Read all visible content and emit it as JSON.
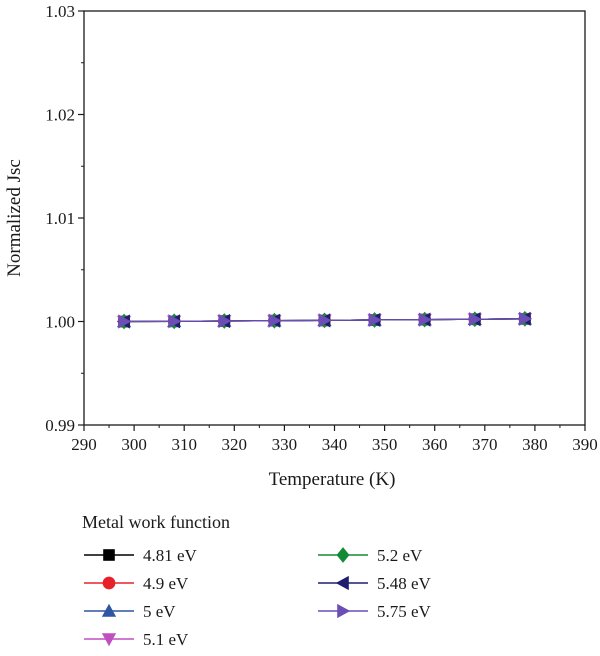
{
  "chart_data": {
    "type": "line",
    "xlabel": "Temperature (K)",
    "ylabel": "Normalized Jsc",
    "xlim": [
      290,
      390
    ],
    "ylim": [
      0.99,
      1.03
    ],
    "xticks": [
      290,
      300,
      310,
      320,
      330,
      340,
      350,
      360,
      370,
      380,
      390
    ],
    "yticks": [
      0.99,
      1.0,
      1.01,
      1.02,
      1.03
    ],
    "ytick_labels": [
      "0.99",
      "1.00",
      "1.01",
      "1.02",
      "1.03"
    ],
    "grid": false,
    "legend": {
      "title": "Metal work function",
      "placement": "bottom"
    },
    "x": [
      298,
      308,
      318,
      328,
      338,
      348,
      358,
      368,
      378
    ],
    "series": [
      {
        "name": "4.81 eV",
        "marker": "square",
        "color": "#000000",
        "values": [
          1.0,
          1.00002,
          1.00005,
          1.00008,
          1.00011,
          1.00015,
          1.00018,
          1.00022,
          1.00026
        ]
      },
      {
        "name": "4.9 eV",
        "marker": "circle",
        "color": "#e8202a",
        "values": [
          1.0,
          1.00002,
          1.00005,
          1.00008,
          1.00011,
          1.00015,
          1.00018,
          1.00022,
          1.00026
        ]
      },
      {
        "name": "5 eV",
        "marker": "triangle-up",
        "color": "#2f55a4",
        "values": [
          1.0,
          1.00002,
          1.00005,
          1.00008,
          1.00011,
          1.00015,
          1.00018,
          1.00022,
          1.00026
        ]
      },
      {
        "name": "5.1 eV",
        "marker": "triangle-down",
        "color": "#c04fc0",
        "values": [
          1.0,
          1.00002,
          1.00005,
          1.00008,
          1.00011,
          1.00015,
          1.00018,
          1.00022,
          1.00026
        ]
      },
      {
        "name": "5.2 eV",
        "marker": "diamond",
        "color": "#138a36",
        "values": [
          1.0,
          1.00002,
          1.00005,
          1.00008,
          1.00011,
          1.00015,
          1.00018,
          1.00022,
          1.00026
        ]
      },
      {
        "name": "5.48 eV",
        "marker": "triangle-left",
        "color": "#1d1f6e",
        "values": [
          1.0,
          1.00002,
          1.00005,
          1.00008,
          1.00011,
          1.00015,
          1.00018,
          1.00022,
          1.00026
        ]
      },
      {
        "name": "5.75 eV",
        "marker": "triangle-right",
        "color": "#6b4fb5",
        "values": [
          1.0,
          1.00002,
          1.00005,
          1.00008,
          1.00011,
          1.00015,
          1.00018,
          1.00022,
          1.00026
        ]
      }
    ]
  }
}
